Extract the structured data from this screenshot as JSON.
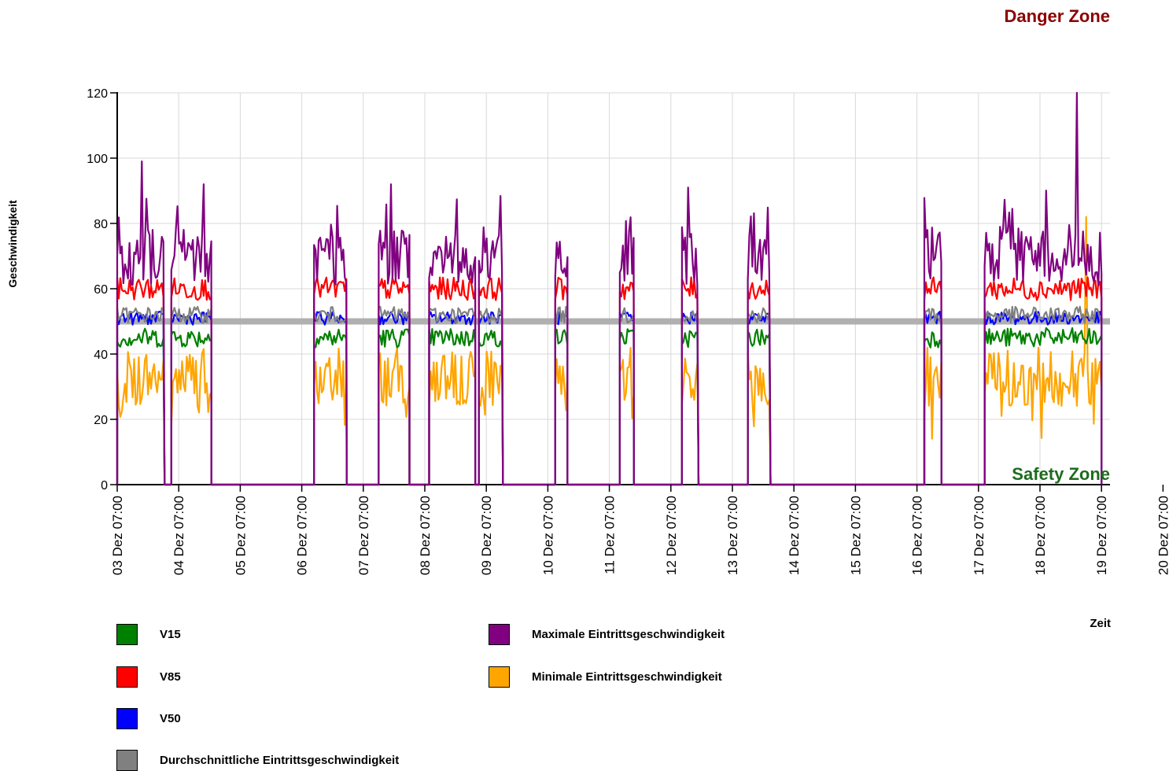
{
  "chart_data": {
    "type": "line",
    "xlabel": "Zeit",
    "ylabel": "Geschwindigkeit",
    "ylim": [
      0,
      120
    ],
    "yticks": [
      0,
      20,
      40,
      60,
      80,
      100,
      120
    ],
    "x_tick_labels": [
      "03 Dez 07:00",
      "04 Dez 07:00",
      "05 Dez 07:00",
      "06 Dez 07:00",
      "07 Dez 07:00",
      "08 Dez 07:00",
      "09 Dez 07:00",
      "10 Dez 07:00",
      "11 Dez 07:00",
      "12 Dez 07:00",
      "13 Dez 07:00",
      "14 Dez 07:00",
      "15 Dez 07:00",
      "16 Dez 07:00",
      "17 Dez 07:00",
      "18 Dez 07:00",
      "19 Dez 07:00",
      "20 Dez 07:00"
    ],
    "grid": true,
    "reference_line": {
      "value": 50,
      "color": "#b0b0b0"
    },
    "zones": {
      "danger": "Danger Zone",
      "danger_color": "#8b0000",
      "safety": "Safety Zone",
      "safety_color": "#1e6b1e"
    },
    "series_colors": {
      "V15": "#008000",
      "V85": "#ff0000",
      "V50": "#0000ff",
      "Durchschnittliche Eintrittsgeschwindigkeit": "#808080",
      "Maximale Eintrittsgeschwindigkeit": "#800080",
      "Minimale Eintrittsgeschwindigkeit": "#ffa500"
    },
    "active_periods": [
      {
        "start": 0.0,
        "end": 0.77
      },
      {
        "start": 0.88,
        "end": 1.53
      },
      {
        "start": 3.2,
        "end": 3.73
      },
      {
        "start": 4.25,
        "end": 4.75
      },
      {
        "start": 5.07,
        "end": 5.82
      },
      {
        "start": 5.88,
        "end": 6.27
      },
      {
        "start": 7.12,
        "end": 7.32
      },
      {
        "start": 8.17,
        "end": 8.4
      },
      {
        "start": 9.18,
        "end": 9.45
      },
      {
        "start": 10.25,
        "end": 10.62
      },
      {
        "start": 13.12,
        "end": 13.4
      },
      {
        "start": 14.1,
        "end": 16.0
      }
    ],
    "levels": {
      "V15": 45,
      "V85": 60,
      "V50": 51,
      "Durchschnittliche Eintrittsgeschwindigkeit": 52,
      "Maximale Eintrittsgeschwindigkeit": 70,
      "Minimale Eintrittsgeschwindigkeit": 33
    },
    "peaks": [
      {
        "x": 0.4,
        "series": "Maximale Eintrittsgeschwindigkeit",
        "value": 99
      },
      {
        "x": 1.4,
        "series": "Maximale Eintrittsgeschwindigkeit",
        "value": 92
      },
      {
        "x": 4.45,
        "series": "Maximale Eintrittsgeschwindigkeit",
        "value": 92
      },
      {
        "x": 9.27,
        "series": "Maximale Eintrittsgeschwindigkeit",
        "value": 91
      },
      {
        "x": 15.6,
        "series": "Maximale Eintrittsgeschwindigkeit",
        "value": 120
      },
      {
        "x": 15.75,
        "series": "Minimale Eintrittsgeschwindigkeit",
        "value": 82
      }
    ]
  },
  "legend": {
    "items": [
      {
        "label": "V15",
        "color": "#008000"
      },
      {
        "label": "V85",
        "color": "#ff0000"
      },
      {
        "label": "V50",
        "color": "#0000ff"
      },
      {
        "label": "Durchschnittliche Eintrittsgeschwindigkeit",
        "color": "#808080"
      },
      {
        "label": "Maximale Eintrittsgeschwindigkeit",
        "color": "#800080"
      },
      {
        "label": "Minimale Eintrittsgeschwindigkeit",
        "color": "#ffa500"
      }
    ]
  }
}
